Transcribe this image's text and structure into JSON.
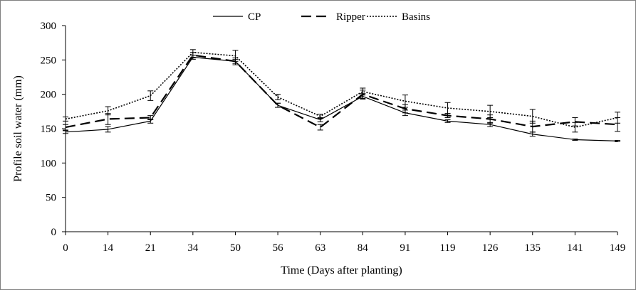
{
  "chart_data": {
    "type": "line",
    "title": "",
    "xlabel": "Time  (Days after planting)",
    "ylabel": "Profile soil  water (mm)",
    "ylim": [
      0,
      300
    ],
    "yticks": [
      "0",
      "50",
      "100",
      "150",
      "200",
      "250",
      "300"
    ],
    "categories": [
      "0",
      "14",
      "21",
      "34",
      "50",
      "56",
      "63",
      "84",
      "91",
      "119",
      "126",
      "135",
      "141",
      "149"
    ],
    "legend_position": "top-center",
    "grid": false,
    "series": [
      {
        "name": "CP",
        "style": "solid",
        "color": "#000000",
        "values": [
          145,
          149,
          161,
          254,
          248,
          184,
          163,
          197,
          173,
          161,
          156,
          142,
          134,
          132
        ],
        "errors": [
          2,
          4,
          3,
          3,
          3,
          3,
          3,
          4,
          4,
          2,
          3,
          3,
          1,
          1
        ]
      },
      {
        "name": "Ripper",
        "style": "dashed",
        "color": "#000000",
        "values": [
          152,
          164,
          166,
          257,
          248,
          184,
          152,
          200,
          179,
          169,
          164,
          153,
          160,
          156
        ],
        "errors": [
          4,
          8,
          3,
          4,
          5,
          3,
          4,
          6,
          6,
          3,
          6,
          8,
          6,
          10
        ]
      },
      {
        "name": "Basins",
        "style": "dotted",
        "color": "#000000",
        "values": [
          164,
          176,
          198,
          261,
          256,
          196,
          168,
          204,
          190,
          180,
          175,
          168,
          152,
          166
        ],
        "errors": [
          3,
          6,
          7,
          4,
          8,
          4,
          3,
          5,
          9,
          8,
          9,
          10,
          7,
          8
        ]
      }
    ]
  }
}
